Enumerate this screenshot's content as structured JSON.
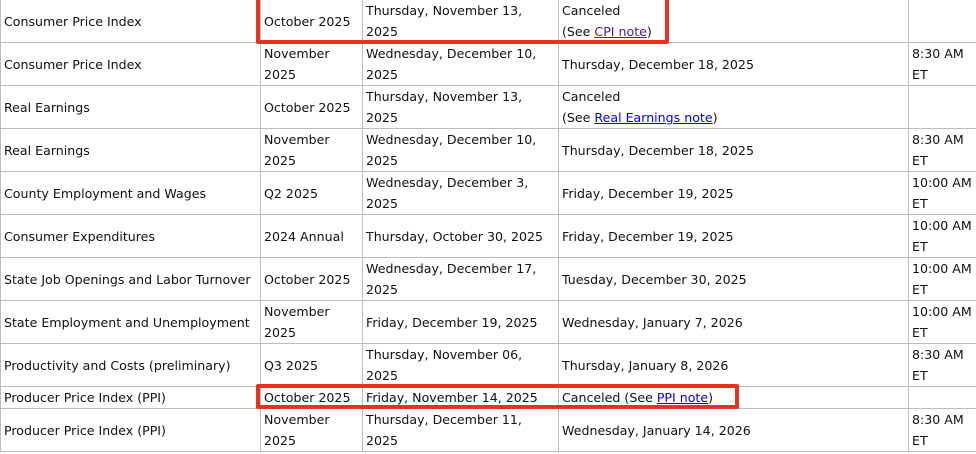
{
  "rows": [
    {
      "name": "Consumer Price Index",
      "period": "October 2025",
      "original": "Thursday, November 13, 2025",
      "status_pre": "Canceled",
      "status_see": "(See ",
      "link": "CPI note",
      "status_post": ")",
      "time": ""
    },
    {
      "name": "Consumer Price Index",
      "period": "November 2025",
      "original": "Wednesday, December 10, 2025",
      "new": "Thursday, December 18, 2025",
      "time": "8:30 AM ET"
    },
    {
      "name": "Real Earnings",
      "period": "October 2025",
      "original": "Thursday, November 13, 2025",
      "status_pre": "Canceled",
      "status_see": "(See ",
      "link": "Real Earnings note",
      "status_post": ")",
      "time": ""
    },
    {
      "name": "Real Earnings",
      "period": "November 2025",
      "original": "Wednesday, December 10, 2025",
      "new": "Thursday, December 18, 2025",
      "time": "8:30 AM ET"
    },
    {
      "name": "County Employment and Wages",
      "period": "Q2 2025",
      "original": "Wednesday, December 3, 2025",
      "new": "Friday, December 19, 2025",
      "time": "10:00 AM ET"
    },
    {
      "name": "Consumer Expenditures",
      "period": "2024 Annual",
      "original": "Thursday, October 30, 2025",
      "new": "Friday, December 19, 2025",
      "time": "10:00 AM ET"
    },
    {
      "name": "State Job Openings and Labor Turnover",
      "period": "October 2025",
      "original": "Wednesday, December 17, 2025",
      "new": "Tuesday, December 30, 2025",
      "time": "10:00 AM ET"
    },
    {
      "name": "State Employment and Unemployment",
      "period": "November 2025",
      "original": "Friday, December 19, 2025",
      "new": "Wednesday, January 7, 2026",
      "time": "10:00 AM ET"
    },
    {
      "name": "Productivity and Costs (preliminary)",
      "period": "Q3 2025",
      "original": "Thursday, November 06, 2025",
      "new": "Thursday, January 8, 2026",
      "time": "8:30 AM ET"
    },
    {
      "name": "Producer Price Index (PPI)",
      "period": "October 2025",
      "original": "Friday, November 14, 2025",
      "status_pre": "Canceled (See ",
      "link": "PPI note",
      "status_post": ")",
      "time": ""
    },
    {
      "name": "Producer Price Index (PPI)",
      "period": "November 2025",
      "original": "Thursday, December 11, 2025",
      "new": "Wednesday, January 14, 2026",
      "time": "8:30 AM ET"
    }
  ],
  "colors": {
    "highlight": "#e8321e",
    "visited_link": "#551a8b",
    "link": "#0000ee",
    "border": "#bdbdbd"
  }
}
